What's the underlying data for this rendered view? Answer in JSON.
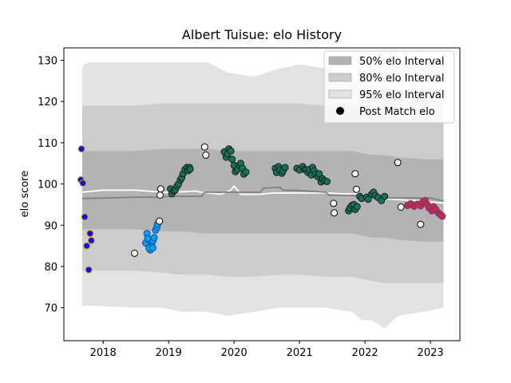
{
  "chart_data": {
    "type": "scatter",
    "title": "Albert Tuisue: elo History",
    "xlabel": "",
    "ylabel": "elo score",
    "xlim": [
      2017.4,
      2023.45
    ],
    "ylim": [
      62,
      133
    ],
    "x_ticks": [
      2018,
      2019,
      2020,
      2021,
      2022,
      2023
    ],
    "y_ticks": [
      70,
      80,
      90,
      100,
      110,
      120,
      130
    ],
    "grid": false,
    "legend_position": "top-right",
    "legend": [
      {
        "label": "50% elo Interval",
        "kind": "band",
        "color": "#b3b3b3"
      },
      {
        "label": "80% elo Interval",
        "kind": "band",
        "color": "#cccccc"
      },
      {
        "label": "95% elo Interval",
        "kind": "band",
        "color": "#e3e3e3"
      },
      {
        "label": "Post Match elo",
        "kind": "point",
        "color": "#000000"
      }
    ],
    "bands": [
      {
        "name": "95% elo Interval",
        "color": "#e3e3e3",
        "x": [
          2017.68,
          2017.7,
          2017.8,
          2018.5,
          2018.9,
          2019.2,
          2019.6,
          2019.9,
          2020.3,
          2020.7,
          2021.0,
          2021.4,
          2021.8,
          2021.95,
          2022.1,
          2022.3,
          2022.5,
          2022.9,
          2023.2
        ],
        "upper": [
          128,
          129,
          129.5,
          129.5,
          129.5,
          129.5,
          129.5,
          127,
          126,
          128,
          129,
          128,
          126,
          124,
          124,
          124.5,
          123,
          124,
          123
        ],
        "lower": [
          70,
          70.5,
          70.5,
          70,
          70,
          69,
          69,
          68,
          69,
          70,
          70,
          70,
          69,
          67,
          67,
          65,
          68,
          69,
          70
        ]
      },
      {
        "name": "80% elo Interval",
        "color": "#cccccc",
        "x": [
          2017.68,
          2017.7,
          2017.8,
          2018.5,
          2018.9,
          2019.2,
          2019.6,
          2019.9,
          2020.3,
          2020.7,
          2021.0,
          2021.4,
          2021.8,
          2021.95,
          2022.1,
          2022.3,
          2022.5,
          2022.9,
          2023.2
        ],
        "upper": [
          119,
          119,
          119,
          119,
          119.5,
          119.5,
          119.5,
          119.5,
          119.5,
          119.5,
          119.5,
          119,
          119,
          118,
          117,
          116.5,
          116,
          116,
          115
        ],
        "lower": [
          79,
          79,
          79,
          79,
          78.5,
          78,
          78,
          77.5,
          77.5,
          78,
          78,
          77.5,
          77.5,
          77,
          76.5,
          76,
          76,
          76,
          76
        ]
      },
      {
        "name": "50% elo Interval",
        "color": "#b3b3b3",
        "x": [
          2017.68,
          2017.7,
          2017.8,
          2018.5,
          2018.9,
          2019.2,
          2019.6,
          2019.9,
          2020.3,
          2020.7,
          2021.0,
          2021.4,
          2021.8,
          2021.95,
          2022.1,
          2022.3,
          2022.5,
          2022.9,
          2023.2
        ],
        "upper": [
          108,
          108,
          108,
          108,
          108.5,
          108.5,
          108.5,
          108,
          108,
          108,
          108,
          108,
          108,
          107.5,
          107,
          107,
          106.5,
          106,
          106
        ],
        "lower": [
          89,
          89,
          89,
          89,
          88.5,
          88.5,
          88,
          88,
          88,
          88,
          88,
          88,
          88,
          87.5,
          87,
          87,
          86.5,
          86,
          86
        ]
      }
    ],
    "lines": [
      {
        "color": "#ffffff",
        "x": [
          2017.68,
          2018.0,
          2018.5,
          2018.9,
          2019.1,
          2019.3,
          2019.4,
          2019.5,
          2019.8,
          2019.95,
          2020.0,
          2020.05,
          2020.1,
          2020.4,
          2020.6,
          2021.0,
          2021.4,
          2021.7,
          2021.9,
          2022.0,
          2022.2,
          2022.5,
          2022.8,
          2023.0,
          2023.2
        ],
        "y": [
          98,
          98.5,
          98.5,
          98,
          98,
          98.2,
          98.3,
          98,
          97.5,
          98.5,
          99.5,
          98.5,
          97.5,
          97.5,
          97.8,
          97.8,
          97.8,
          97.6,
          97.7,
          97.3,
          96.6,
          96.2,
          96.0,
          95.6,
          95.4
        ]
      },
      {
        "color": "#808080",
        "x": [
          2017.68,
          2018.0,
          2018.5,
          2018.85,
          2019.0,
          2019.5,
          2019.55,
          2020.0,
          2020.4,
          2020.45,
          2020.7,
          2020.75,
          2021.0,
          2021.4,
          2021.45,
          2021.8,
          2022.0,
          2022.4,
          2022.8,
          2023.0,
          2023.2
        ],
        "y": [
          96.5,
          96.6,
          96.8,
          96.8,
          97.0,
          97.0,
          98.0,
          98.0,
          98.0,
          99.0,
          99.2,
          98.5,
          98.4,
          98.0,
          97.3,
          97.2,
          97.0,
          96.6,
          96.6,
          96.6,
          95.9
        ]
      }
    ],
    "point_series": [
      {
        "fill": "#1010ee",
        "edge": "#e0a800",
        "x": [
          2017.66,
          2017.67,
          2017.69,
          2017.72,
          2017.75,
          2017.78,
          2017.8,
          2017.82
        ],
        "y": [
          101,
          108.5,
          100.2,
          92,
          85,
          79.2,
          88,
          86.3
        ]
      },
      {
        "fill": "#00a8d8",
        "edge": "#1f3cc6",
        "x": [
          2018.65,
          2018.67,
          2018.7,
          2018.72,
          2018.74,
          2018.76,
          2018.78,
          2018.8,
          2018.82,
          2018.83,
          2018.68,
          2018.7,
          2018.76
        ],
        "y": [
          85.7,
          88,
          86.5,
          84,
          85,
          86.2,
          87,
          88.8,
          89.5,
          90.2,
          86.8,
          84.5,
          84.5
        ]
      },
      {
        "fill": "#ffffff",
        "edge": "#000000",
        "x": [
          2018.48,
          2018.86,
          2018.88,
          2018.87,
          2019.55,
          2019.57,
          2021.52,
          2021.53,
          2021.85,
          2021.87,
          2022.5,
          2022.55,
          2022.85
        ],
        "y": [
          83.2,
          91,
          98.8,
          97.3,
          109,
          107,
          95.3,
          93,
          102.5,
          98.7,
          105.2,
          94.4,
          90.2
        ]
      },
      {
        "fill": "#17705a",
        "edge": "#1a1a1a",
        "x": [
          2019.03,
          2019.05,
          2019.08,
          2019.1,
          2019.13,
          2019.15,
          2019.18,
          2019.2,
          2019.22,
          2019.25,
          2019.28,
          2019.3,
          2019.32,
          2019.33,
          2019.85,
          2019.88,
          2019.9,
          2019.92,
          2019.95,
          2019.97,
          2020.0,
          2020.02,
          2020.05,
          2020.08,
          2020.1,
          2020.13,
          2020.15,
          2020.18,
          2020.63,
          2020.65,
          2020.68,
          2020.7,
          2020.73,
          2020.75,
          2020.78,
          2020.96,
          2021.0,
          2021.05,
          2021.08,
          2021.1,
          2021.13,
          2021.15,
          2021.18,
          2021.2,
          2021.22,
          2021.25,
          2021.28,
          2021.3,
          2021.33,
          2021.35,
          2021.38,
          2021.42,
          2021.75,
          2021.77,
          2021.8,
          2021.83,
          2021.85,
          2021.88,
          2021.92,
          2021.95,
          2022.02,
          2022.05,
          2022.1,
          2022.13,
          2022.16,
          2022.2,
          2022.25,
          2022.3
        ],
        "y": [
          98.8,
          97.6,
          98.3,
          98.5,
          99.5,
          100,
          101,
          101.5,
          102.5,
          103.5,
          104,
          103.2,
          104,
          103.6,
          107.8,
          106.5,
          107.3,
          108.5,
          108,
          106,
          104.5,
          103,
          103.5,
          104.5,
          105,
          103.8,
          102.4,
          102.9,
          103.8,
          102.8,
          104.2,
          103.4,
          102.6,
          103.2,
          104,
          103.8,
          103.4,
          104.2,
          103.5,
          103.4,
          102.8,
          103.5,
          102.2,
          104,
          103.2,
          102.3,
          101.8,
          102.5,
          100.5,
          101.3,
          100.8,
          100.6,
          93.5,
          94.2,
          94.8,
          95,
          93.8,
          94.5,
          97,
          96.5,
          96.8,
          96.3,
          97.5,
          98,
          97.2,
          96.7,
          96,
          97
        ]
      },
      {
        "fill": "#c0303c",
        "edge": "#7b2d8b",
        "x": [
          2022.65,
          2022.7,
          2022.75,
          2022.8,
          2022.85,
          2022.88,
          2022.92,
          2022.95,
          2022.98,
          2023.02,
          2023.05,
          2023.08,
          2023.12,
          2023.15,
          2023.18
        ],
        "y": [
          94.8,
          95.2,
          94.6,
          95.1,
          94.7,
          95.6,
          96,
          95,
          94.2,
          93.5,
          94.5,
          93.8,
          93,
          92.6,
          92.2
        ]
      }
    ]
  }
}
